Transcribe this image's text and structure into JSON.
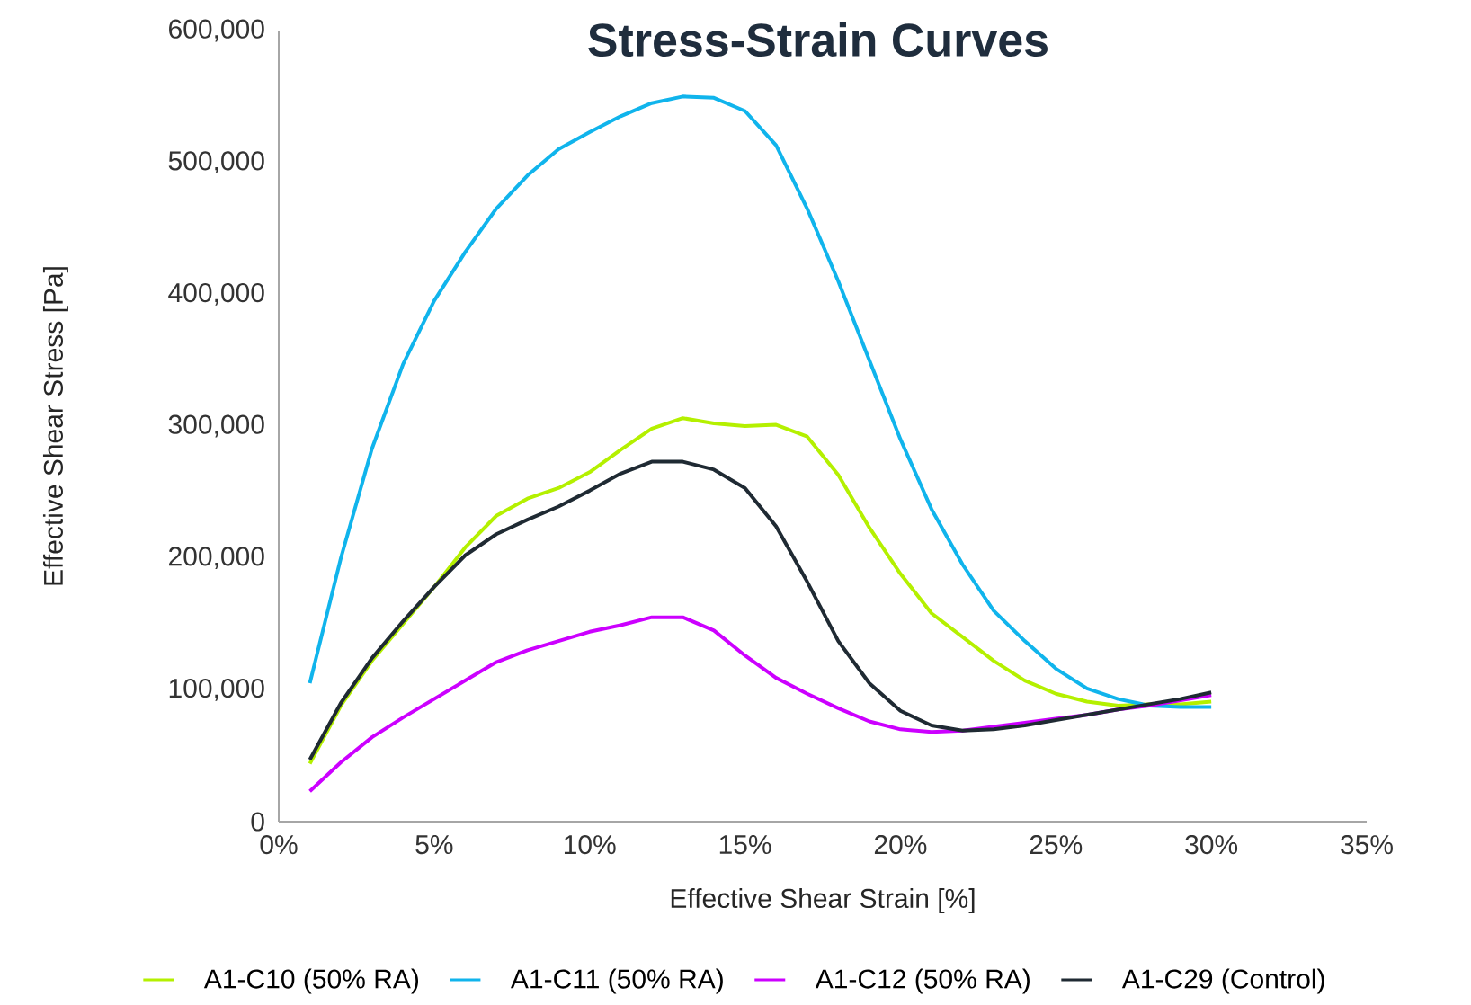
{
  "chart_data": {
    "type": "line",
    "title": "Stress-Strain Curves",
    "xlabel": "Effective Shear Strain [%]",
    "ylabel": "Effective Shear Stress [Pa]",
    "x": [
      1,
      2,
      3,
      4,
      5,
      6,
      7,
      8,
      9,
      10,
      11,
      12,
      13,
      14,
      15,
      16,
      17,
      18,
      19,
      20,
      21,
      22,
      23,
      24,
      25,
      26,
      27,
      28,
      29,
      30
    ],
    "series": [
      {
        "name": "A1-C10 (50% RA)",
        "color": "#b4f000",
        "values": [
          44000,
          88000,
          122000,
          150000,
          178000,
          208000,
          232000,
          245000,
          253000,
          265000,
          282000,
          298000,
          306000,
          302000,
          300000,
          301000,
          292000,
          263000,
          223000,
          188000,
          158000,
          140000,
          122000,
          107000,
          97000,
          91000,
          88000,
          89000,
          89000,
          91000
        ]
      },
      {
        "name": "A1-C11 (50% RA)",
        "color": "#10b4ec",
        "values": [
          105000,
          200000,
          283000,
          347000,
          395000,
          432000,
          465000,
          490000,
          510000,
          523000,
          535000,
          545000,
          550000,
          549000,
          539000,
          513000,
          465000,
          410000,
          350000,
          290000,
          237000,
          195000,
          160000,
          137000,
          116000,
          101000,
          93000,
          88000,
          87000,
          87000
        ]
      },
      {
        "name": "A1-C12 (50% RA)",
        "color": "#cc00ff",
        "values": [
          23000,
          45000,
          64000,
          79000,
          93000,
          107000,
          121000,
          130000,
          137000,
          144000,
          149000,
          155000,
          155000,
          145000,
          126000,
          109000,
          97000,
          86000,
          76000,
          70000,
          68000,
          69000,
          72000,
          75000,
          78000,
          81000,
          85000,
          88000,
          92000,
          96000
        ]
      },
      {
        "name": "A1-C29 (Control)",
        "color": "#1f2a33",
        "values": [
          47000,
          90000,
          124000,
          152000,
          178000,
          202000,
          218000,
          229000,
          239000,
          251000,
          264000,
          273000,
          273000,
          267000,
          253000,
          224000,
          182000,
          137000,
          105000,
          84000,
          73000,
          69000,
          70000,
          73000,
          77000,
          81000,
          85000,
          89000,
          93000,
          98000
        ]
      }
    ],
    "xlim": [
      0,
      35
    ],
    "xticks": [
      {
        "value": 0,
        "label": "0%"
      },
      {
        "value": 5,
        "label": "5%"
      },
      {
        "value": 10,
        "label": "10%"
      },
      {
        "value": 15,
        "label": "15%"
      },
      {
        "value": 20,
        "label": "20%"
      },
      {
        "value": 25,
        "label": "25%"
      },
      {
        "value": 30,
        "label": "30%"
      },
      {
        "value": 35,
        "label": "35%"
      }
    ],
    "ylim": [
      0,
      600000
    ],
    "yticks": [
      {
        "value": 0,
        "label": "0"
      },
      {
        "value": 100000,
        "label": "100,000"
      },
      {
        "value": 200000,
        "label": "200,000"
      },
      {
        "value": 300000,
        "label": "300,000"
      },
      {
        "value": 400000,
        "label": "400,000"
      },
      {
        "value": 500000,
        "label": "500,000"
      },
      {
        "value": 600000,
        "label": "600,000"
      }
    ],
    "grid": false,
    "legend": "bottom",
    "marker": "none",
    "line_style": "solid"
  }
}
